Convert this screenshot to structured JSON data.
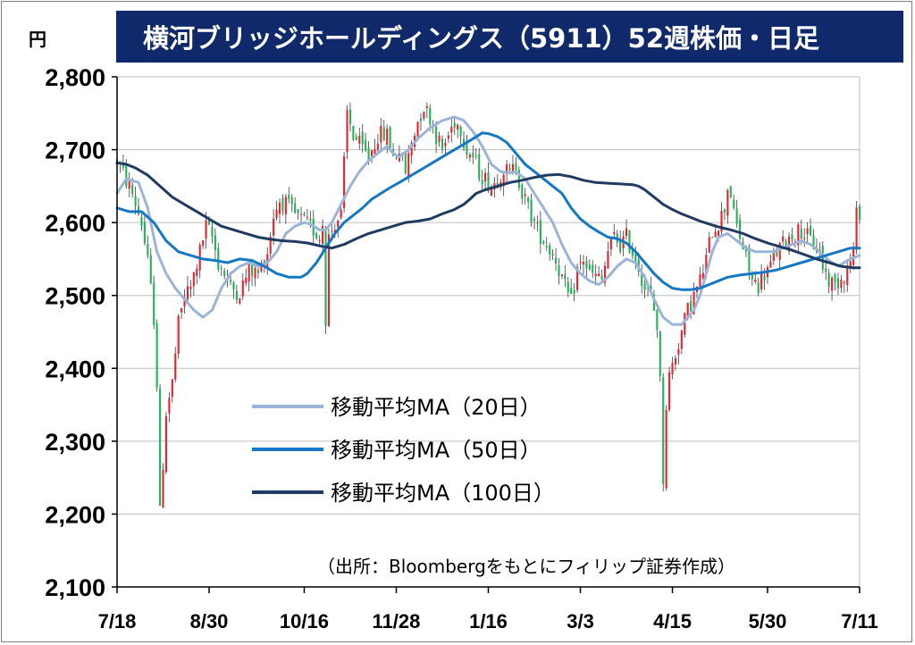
{
  "title": "横河ブリッジホールディングス（5911）52週株価・日足",
  "unit": "円",
  "colors": {
    "title_bg": "#10296b",
    "up_candle": "#e8222f",
    "down_candle": "#23b35a",
    "ma20": "#9bb5d8",
    "ma50": "#1478c4",
    "ma100": "#1f3b62",
    "grid": "#bfbfbf"
  },
  "chart_data": {
    "type": "candlestick",
    "ylim": [
      2100,
      2800
    ],
    "y_ticks": [
      "2,100",
      "2,200",
      "2,300",
      "2,400",
      "2,500",
      "2,600",
      "2,700",
      "2,800"
    ],
    "y_tick_values": [
      2100,
      2200,
      2300,
      2400,
      2500,
      2600,
      2700,
      2800
    ],
    "x_ticks": [
      "7/18",
      "8/30",
      "10/16",
      "11/28",
      "1/16",
      "3/3",
      "4/15",
      "5/30",
      "7/11"
    ],
    "n_days": 243,
    "x_tick_days": [
      0,
      30,
      61,
      91,
      121,
      151,
      181,
      212,
      242
    ],
    "legend": [
      {
        "label": "移動平均MA（20日）",
        "key": "ma20"
      },
      {
        "label": "移動平均MA（50日）",
        "key": "ma50"
      },
      {
        "label": "移動平均MA（100日）",
        "key": "ma100"
      }
    ],
    "source": "（出所：Bloombergをもとにフィリップ証券作成）",
    "price_path": [
      [
        0,
        2685
      ],
      [
        5,
        2640
      ],
      [
        8,
        2600
      ],
      [
        10,
        2545
      ],
      [
        12,
        2470
      ],
      [
        13,
        2380
      ],
      [
        14,
        2200
      ],
      [
        16,
        2340
      ],
      [
        18,
        2380
      ],
      [
        20,
        2460
      ],
      [
        22,
        2500
      ],
      [
        24,
        2510
      ],
      [
        27,
        2560
      ],
      [
        29,
        2595
      ],
      [
        31,
        2580
      ],
      [
        33,
        2545
      ],
      [
        35,
        2530
      ],
      [
        37,
        2510
      ],
      [
        40,
        2505
      ],
      [
        43,
        2535
      ],
      [
        46,
        2530
      ],
      [
        49,
        2560
      ],
      [
        51,
        2610
      ],
      [
        53,
        2630
      ],
      [
        55,
        2625
      ],
      [
        58,
        2610
      ],
      [
        61,
        2600
      ],
      [
        64,
        2590
      ],
      [
        66,
        2580
      ],
      [
        67,
        2600
      ],
      [
        68,
        2470
      ],
      [
        69,
        2580
      ],
      [
        71,
        2600
      ],
      [
        73,
        2610
      ],
      [
        75,
        2750
      ],
      [
        77,
        2720
      ],
      [
        80,
        2700
      ],
      [
        82,
        2690
      ],
      [
        85,
        2720
      ],
      [
        88,
        2720
      ],
      [
        90,
        2690
      ],
      [
        92,
        2700
      ],
      [
        94,
        2670
      ],
      [
        96,
        2710
      ],
      [
        98,
        2740
      ],
      [
        100,
        2760
      ],
      [
        102,
        2745
      ],
      [
        104,
        2720
      ],
      [
        106,
        2700
      ],
      [
        108,
        2720
      ],
      [
        110,
        2740
      ],
      [
        112,
        2730
      ],
      [
        114,
        2700
      ],
      [
        116,
        2690
      ],
      [
        118,
        2670
      ],
      [
        120,
        2660
      ],
      [
        122,
        2650
      ],
      [
        124,
        2660
      ],
      [
        126,
        2675
      ],
      [
        128,
        2665
      ],
      [
        130,
        2680
      ],
      [
        132,
        2640
      ],
      [
        134,
        2620
      ],
      [
        137,
        2590
      ],
      [
        140,
        2570
      ],
      [
        143,
        2550
      ],
      [
        146,
        2510
      ],
      [
        148,
        2490
      ],
      [
        150,
        2535
      ],
      [
        152,
        2550
      ],
      [
        154,
        2530
      ],
      [
        156,
        2525
      ],
      [
        158,
        2520
      ],
      [
        160,
        2560
      ],
      [
        162,
        2580
      ],
      [
        164,
        2570
      ],
      [
        166,
        2580
      ],
      [
        168,
        2560
      ],
      [
        170,
        2540
      ],
      [
        172,
        2510
      ],
      [
        174,
        2500
      ],
      [
        176,
        2460
      ],
      [
        177,
        2380
      ],
      [
        178,
        2250
      ],
      [
        179,
        2350
      ],
      [
        180,
        2390
      ],
      [
        182,
        2420
      ],
      [
        184,
        2450
      ],
      [
        186,
        2480
      ],
      [
        188,
        2500
      ],
      [
        190,
        2520
      ],
      [
        192,
        2550
      ],
      [
        194,
        2590
      ],
      [
        196,
        2600
      ],
      [
        198,
        2620
      ],
      [
        199,
        2650
      ],
      [
        200,
        2640
      ],
      [
        201,
        2610
      ],
      [
        203,
        2580
      ],
      [
        205,
        2550
      ],
      [
        207,
        2520
      ],
      [
        209,
        2515
      ],
      [
        211,
        2530
      ],
      [
        213,
        2540
      ],
      [
        215,
        2560
      ],
      [
        217,
        2570
      ],
      [
        219,
        2580
      ],
      [
        221,
        2585
      ],
      [
        223,
        2590
      ],
      [
        225,
        2580
      ],
      [
        227,
        2570
      ],
      [
        229,
        2560
      ],
      [
        230,
        2540
      ],
      [
        232,
        2520
      ],
      [
        234,
        2515
      ],
      [
        236,
        2525
      ],
      [
        238,
        2535
      ],
      [
        240,
        2560
      ],
      [
        241,
        2610
      ],
      [
        242,
        2615
      ]
    ],
    "series": [
      {
        "name": "移動平均MA（20日）",
        "key": "ma20",
        "points": [
          [
            0,
            2640
          ],
          [
            3,
            2660
          ],
          [
            7,
            2655
          ],
          [
            10,
            2620
          ],
          [
            13,
            2560
          ],
          [
            16,
            2530
          ],
          [
            19,
            2510
          ],
          [
            22,
            2495
          ],
          [
            25,
            2480
          ],
          [
            28,
            2470
          ],
          [
            31,
            2480
          ],
          [
            34,
            2510
          ],
          [
            37,
            2530
          ],
          [
            40,
            2540
          ],
          [
            43,
            2545
          ],
          [
            46,
            2540
          ],
          [
            49,
            2545
          ],
          [
            52,
            2560
          ],
          [
            55,
            2585
          ],
          [
            58,
            2595
          ],
          [
            61,
            2600
          ],
          [
            63,
            2598
          ],
          [
            66,
            2590
          ],
          [
            68,
            2590
          ],
          [
            70,
            2600
          ],
          [
            73,
            2625
          ],
          [
            76,
            2650
          ],
          [
            79,
            2670
          ],
          [
            82,
            2685
          ],
          [
            85,
            2695
          ],
          [
            88,
            2705
          ],
          [
            90,
            2695
          ],
          [
            92,
            2690
          ],
          [
            95,
            2700
          ],
          [
            98,
            2715
          ],
          [
            102,
            2730
          ],
          [
            106,
            2740
          ],
          [
            110,
            2745
          ],
          [
            113,
            2740
          ],
          [
            116,
            2725
          ],
          [
            119,
            2705
          ],
          [
            122,
            2680
          ],
          [
            125,
            2670
          ],
          [
            128,
            2668
          ],
          [
            130,
            2670
          ],
          [
            133,
            2660
          ],
          [
            136,
            2640
          ],
          [
            139,
            2620
          ],
          [
            142,
            2600
          ],
          [
            145,
            2570
          ],
          [
            148,
            2545
          ],
          [
            151,
            2530
          ],
          [
            154,
            2520
          ],
          [
            157,
            2515
          ],
          [
            160,
            2525
          ],
          [
            163,
            2540
          ],
          [
            166,
            2550
          ],
          [
            169,
            2545
          ],
          [
            172,
            2525
          ],
          [
            175,
            2495
          ],
          [
            178,
            2470
          ],
          [
            181,
            2460
          ],
          [
            184,
            2460
          ],
          [
            186,
            2470
          ],
          [
            188,
            2480
          ],
          [
            190,
            2500
          ],
          [
            192,
            2530
          ],
          [
            194,
            2560
          ],
          [
            196,
            2580
          ],
          [
            199,
            2585
          ],
          [
            202,
            2575
          ],
          [
            205,
            2565
          ],
          [
            208,
            2560
          ],
          [
            211,
            2560
          ],
          [
            214,
            2560
          ],
          [
            217,
            2565
          ],
          [
            220,
            2570
          ],
          [
            223,
            2575
          ],
          [
            226,
            2570
          ],
          [
            229,
            2560
          ],
          [
            232,
            2548
          ],
          [
            235,
            2540
          ],
          [
            238,
            2548
          ],
          [
            242,
            2555
          ]
        ]
      },
      {
        "name": "移動平均MA（50日）",
        "key": "ma50",
        "points": [
          [
            0,
            2620
          ],
          [
            4,
            2615
          ],
          [
            8,
            2615
          ],
          [
            12,
            2600
          ],
          [
            16,
            2575
          ],
          [
            20,
            2560
          ],
          [
            24,
            2555
          ],
          [
            28,
            2550
          ],
          [
            32,
            2548
          ],
          [
            36,
            2545
          ],
          [
            40,
            2550
          ],
          [
            44,
            2548
          ],
          [
            48,
            2540
          ],
          [
            52,
            2530
          ],
          [
            56,
            2525
          ],
          [
            60,
            2525
          ],
          [
            62,
            2530
          ],
          [
            65,
            2545
          ],
          [
            68,
            2565
          ],
          [
            71,
            2585
          ],
          [
            74,
            2600
          ],
          [
            77,
            2610
          ],
          [
            80,
            2620
          ],
          [
            83,
            2632
          ],
          [
            86,
            2640
          ],
          [
            89,
            2648
          ],
          [
            92,
            2655
          ],
          [
            96,
            2665
          ],
          [
            100,
            2675
          ],
          [
            104,
            2685
          ],
          [
            108,
            2695
          ],
          [
            112,
            2705
          ],
          [
            116,
            2715
          ],
          [
            119,
            2723
          ],
          [
            121,
            2722
          ],
          [
            124,
            2718
          ],
          [
            127,
            2710
          ],
          [
            130,
            2695
          ],
          [
            133,
            2680
          ],
          [
            136,
            2670
          ],
          [
            139,
            2660
          ],
          [
            142,
            2650
          ],
          [
            145,
            2640
          ],
          [
            148,
            2620
          ],
          [
            151,
            2605
          ],
          [
            154,
            2595
          ],
          [
            157,
            2587
          ],
          [
            160,
            2580
          ],
          [
            163,
            2578
          ],
          [
            166,
            2572
          ],
          [
            169,
            2560
          ],
          [
            172,
            2545
          ],
          [
            175,
            2530
          ],
          [
            178,
            2518
          ],
          [
            181,
            2510
          ],
          [
            184,
            2508
          ],
          [
            187,
            2508
          ],
          [
            190,
            2510
          ],
          [
            193,
            2515
          ],
          [
            196,
            2520
          ],
          [
            199,
            2525
          ],
          [
            203,
            2528
          ],
          [
            207,
            2530
          ],
          [
            211,
            2532
          ],
          [
            215,
            2535
          ],
          [
            219,
            2540
          ],
          [
            223,
            2545
          ],
          [
            227,
            2550
          ],
          [
            231,
            2555
          ],
          [
            235,
            2560
          ],
          [
            239,
            2565
          ],
          [
            242,
            2565
          ]
        ]
      },
      {
        "name": "移動平均MA（100日）",
        "key": "ma100",
        "points": [
          [
            0,
            2682
          ],
          [
            3,
            2680
          ],
          [
            6,
            2675
          ],
          [
            10,
            2665
          ],
          [
            14,
            2650
          ],
          [
            18,
            2635
          ],
          [
            22,
            2625
          ],
          [
            26,
            2615
          ],
          [
            30,
            2605
          ],
          [
            34,
            2595
          ],
          [
            38,
            2590
          ],
          [
            42,
            2585
          ],
          [
            46,
            2580
          ],
          [
            50,
            2577
          ],
          [
            54,
            2575
          ],
          [
            58,
            2574
          ],
          [
            62,
            2572
          ],
          [
            66,
            2568
          ],
          [
            70,
            2565
          ],
          [
            74,
            2570
          ],
          [
            78,
            2578
          ],
          [
            82,
            2585
          ],
          [
            86,
            2590
          ],
          [
            90,
            2595
          ],
          [
            94,
            2600
          ],
          [
            98,
            2602
          ],
          [
            102,
            2605
          ],
          [
            106,
            2612
          ],
          [
            110,
            2618
          ],
          [
            113,
            2625
          ],
          [
            115,
            2632
          ],
          [
            117,
            2640
          ],
          [
            120,
            2645
          ],
          [
            124,
            2650
          ],
          [
            128,
            2655
          ],
          [
            132,
            2658
          ],
          [
            136,
            2662
          ],
          [
            140,
            2665
          ],
          [
            144,
            2666
          ],
          [
            148,
            2663
          ],
          [
            152,
            2658
          ],
          [
            156,
            2655
          ],
          [
            160,
            2654
          ],
          [
            164,
            2653
          ],
          [
            168,
            2652
          ],
          [
            170,
            2650
          ],
          [
            172,
            2645
          ],
          [
            175,
            2635
          ],
          [
            178,
            2625
          ],
          [
            181,
            2618
          ],
          [
            184,
            2612
          ],
          [
            187,
            2607
          ],
          [
            190,
            2602
          ],
          [
            193,
            2598
          ],
          [
            196,
            2594
          ],
          [
            200,
            2590
          ],
          [
            204,
            2585
          ],
          [
            208,
            2578
          ],
          [
            212,
            2572
          ],
          [
            216,
            2567
          ],
          [
            220,
            2562
          ],
          [
            224,
            2556
          ],
          [
            228,
            2550
          ],
          [
            232,
            2545
          ],
          [
            236,
            2540
          ],
          [
            240,
            2538
          ],
          [
            242,
            2538
          ]
        ]
      }
    ]
  }
}
